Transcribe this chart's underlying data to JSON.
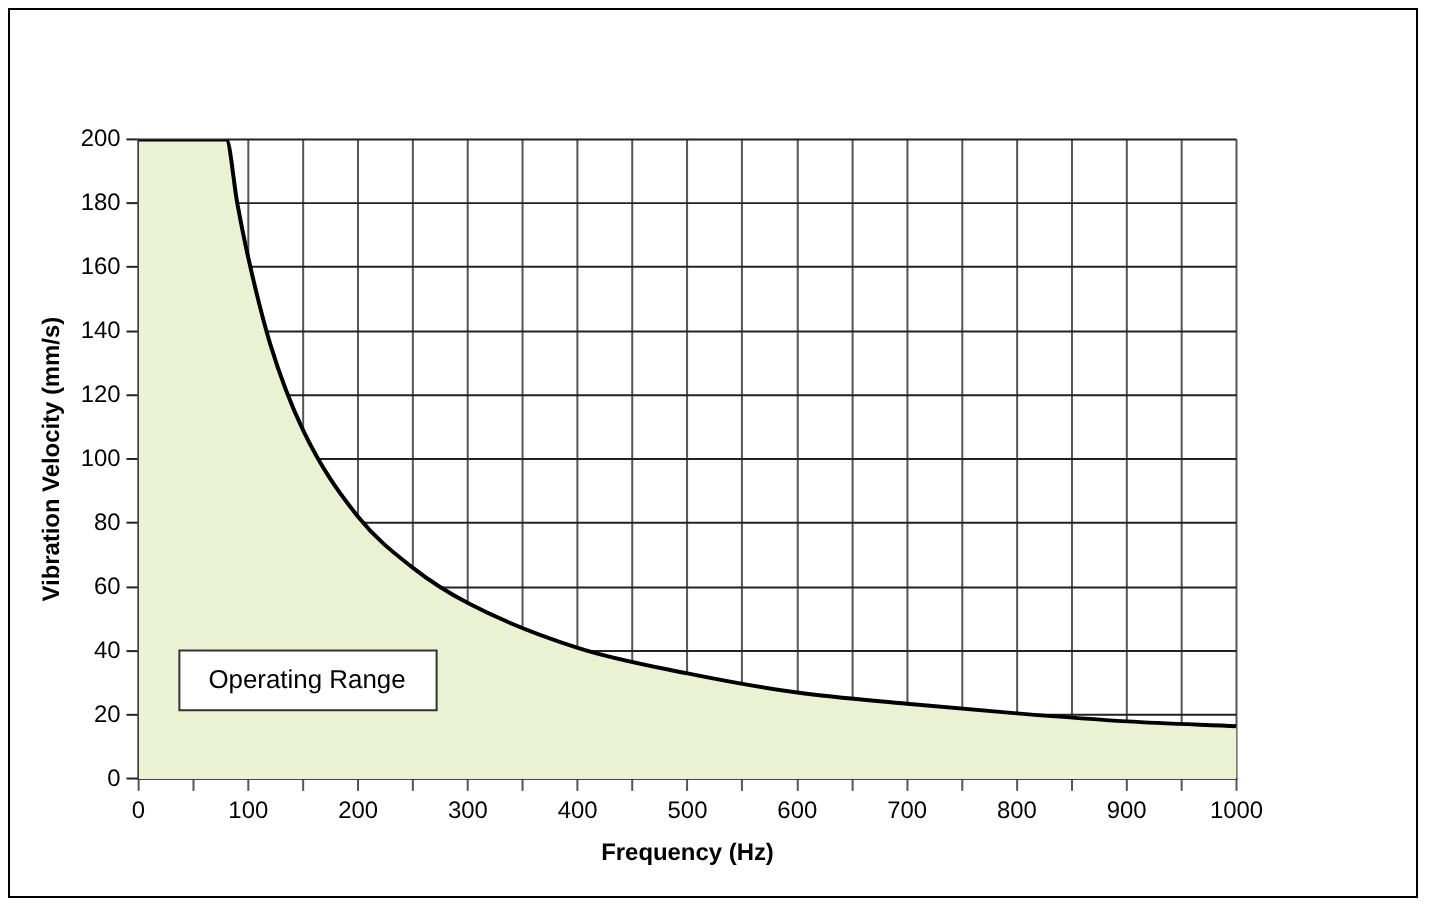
{
  "chart_data": {
    "type": "area",
    "xlabel": "Frequency (Hz)",
    "ylabel": "Vibration Velocity (mm/s)",
    "x": [
      0,
      80,
      90,
      100,
      120,
      150,
      200,
      250,
      300,
      400,
      500,
      600,
      700,
      800,
      900,
      1000
    ],
    "series": [
      {
        "color": "#ebf2d3",
        "values": [
          200,
          200,
          180,
          163,
          136,
          109,
          82,
          66,
          55,
          41,
          33,
          27,
          23.5,
          20.5,
          18,
          16.5
        ]
      }
    ],
    "xlim": [
      0,
      1000
    ],
    "xticks": [
      0,
      {
        "value": 50,
        "label": null
      },
      100,
      {
        "value": 150,
        "label": null
      },
      200,
      {
        "value": 250,
        "label": null
      },
      300,
      {
        "value": 350,
        "label": null
      },
      400,
      {
        "value": 450,
        "label": null
      },
      500,
      {
        "value": 550,
        "label": null
      },
      600,
      {
        "value": 650,
        "label": null
      },
      700,
      {
        "value": 750,
        "label": null
      },
      800,
      {
        "value": 850,
        "label": null
      },
      900,
      {
        "value": 950,
        "label": null
      },
      1000
    ],
    "ylim": [
      0,
      200
    ],
    "yticks": [
      0,
      20,
      40,
      60,
      80,
      100,
      120,
      140,
      160,
      180,
      200
    ],
    "grid": true,
    "legend": false,
    "annotations": [
      "Operating Range"
    ]
  }
}
